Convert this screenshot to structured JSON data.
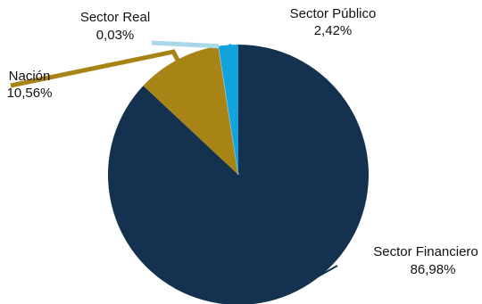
{
  "chart_data": {
    "type": "pie",
    "title": "",
    "series": [
      {
        "name": "Sector Financiero",
        "value": 86.98,
        "display": "86,98%",
        "color": "#14314f"
      },
      {
        "name": "Nación",
        "value": 10.56,
        "display": "10,56%",
        "color": "#a88417"
      },
      {
        "name": "Sector Real",
        "value": 0.03,
        "display": "0,03%",
        "color": "#a8d8ea"
      },
      {
        "name": "Sector Público",
        "value": 2.42,
        "display": "2,42%",
        "color": "#12a3dc"
      }
    ],
    "legend": "none",
    "start_angle_deg": 0,
    "direction": "clockwise"
  }
}
